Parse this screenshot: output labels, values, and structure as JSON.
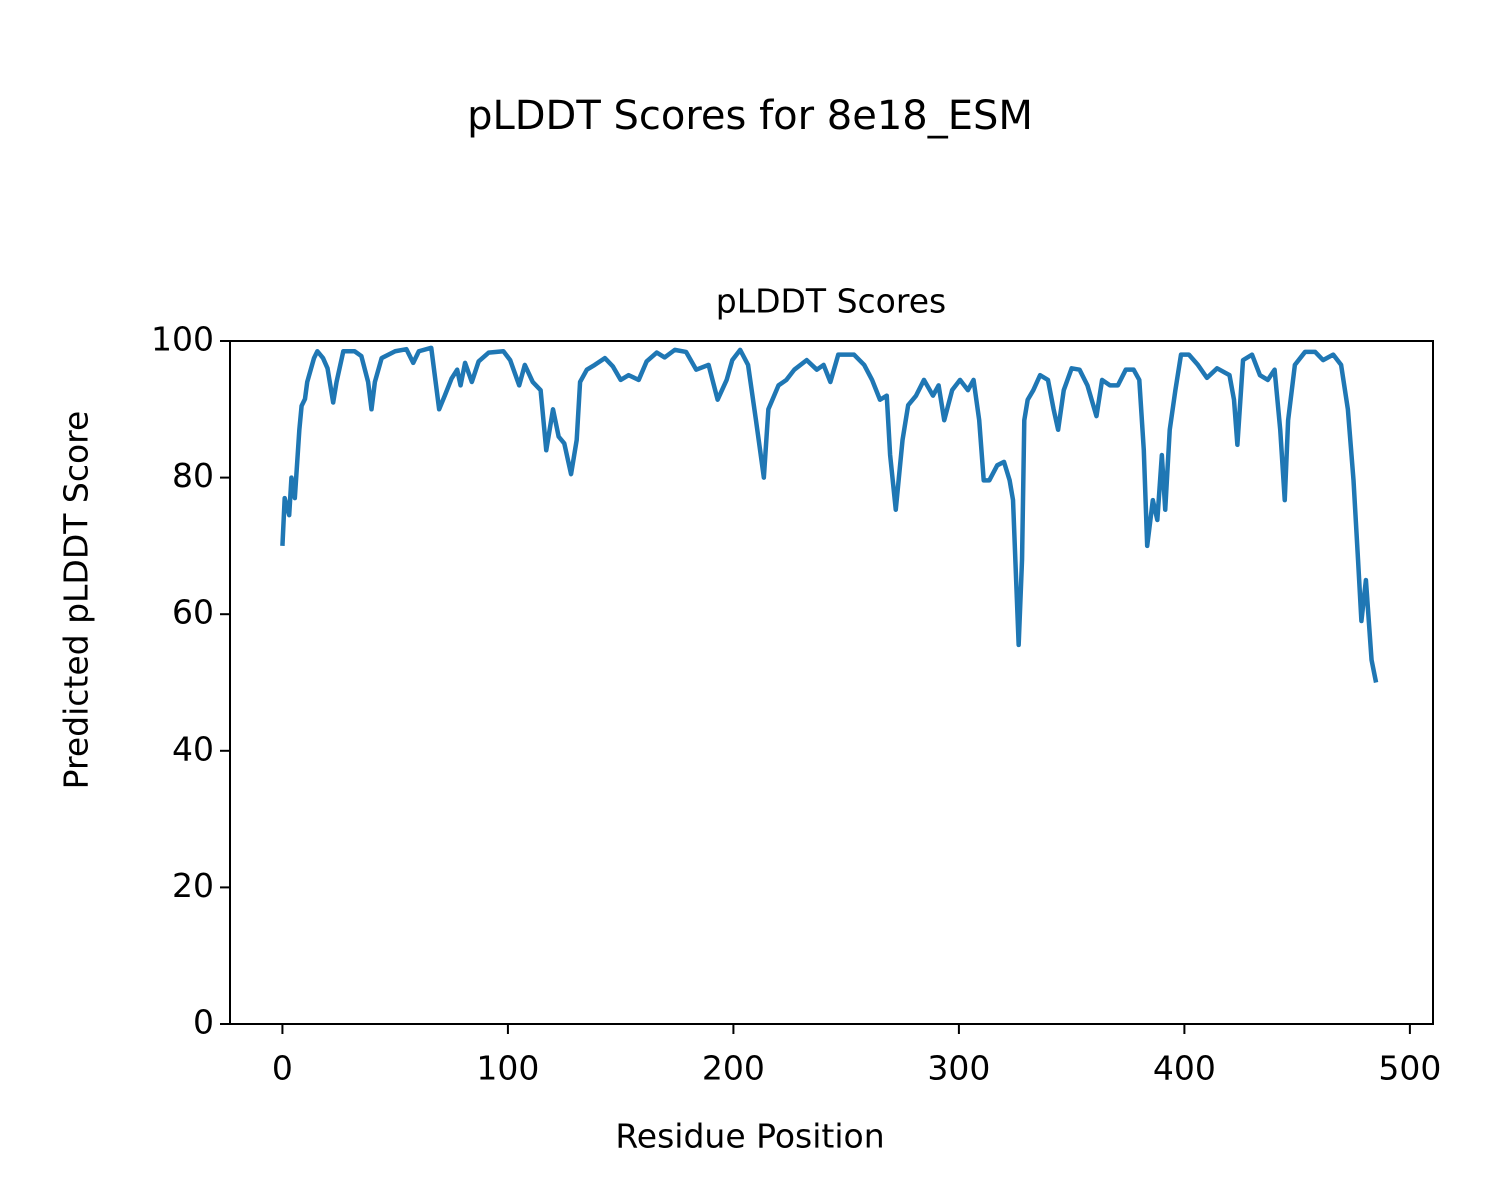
{
  "chart_data": {
    "type": "line",
    "title": "pLDDT Scores for 8e18_ESM",
    "subtitle": "pLDDT Scores",
    "x_label": "Residue Position",
    "y_label": "Predicted pLDDT Score",
    "xlim": [
      -23.25,
      510.25
    ],
    "xticks": [
      0,
      100,
      200,
      300,
      400,
      500
    ],
    "ylim": [
      0,
      100
    ],
    "yticks": [
      0,
      20,
      40,
      60,
      80,
      100
    ],
    "grid": false,
    "series": [
      {
        "name": "pLDDT",
        "color": "#1f77b4",
        "x": [
          0,
          1,
          3,
          4,
          5.5,
          7.5,
          8.5,
          10,
          11,
          14,
          15.5,
          18,
          20,
          22.5,
          24,
          27,
          32,
          35,
          38,
          39.5,
          41,
          44,
          50,
          55,
          58,
          60.5,
          66,
          69.5,
          72,
          75,
          77.5,
          79,
          81,
          84,
          87,
          91.5,
          98,
          101,
          105,
          107.5,
          111,
          114.5,
          117,
          120,
          122.5,
          125,
          128,
          130.5,
          132,
          135,
          138.5,
          143,
          146.5,
          150,
          153.5,
          158,
          161.5,
          166,
          169.5,
          174,
          179,
          183.5,
          189,
          193,
          197,
          199.5,
          203,
          206.5,
          210,
          213.5,
          215.5,
          220,
          223.5,
          227,
          232.5,
          237,
          240,
          243,
          246.5,
          253.5,
          258,
          261.5,
          265,
          268,
          269.5,
          272,
          275,
          277.5,
          281,
          284.5,
          288.5,
          291,
          293.5,
          297,
          300.5,
          304,
          306.5,
          309,
          311,
          313.5,
          317,
          320,
          322.5,
          324,
          326.5,
          328,
          329,
          330.5,
          333,
          336,
          339.5,
          342,
          344,
          346.5,
          350,
          353.5,
          357,
          361,
          363.5,
          367,
          370.5,
          374,
          377.5,
          380,
          382,
          383.5,
          386,
          388,
          390,
          391.5,
          393.5,
          396,
          398.5,
          402,
          406,
          410,
          414.5,
          420,
          422,
          423.5,
          426,
          430,
          433.5,
          437,
          440,
          442.5,
          444.5,
          446,
          449,
          453.5,
          458,
          461.5,
          466,
          469.5,
          472.5,
          475,
          477,
          478.5,
          480.5,
          483,
          485
        ],
        "values": [
          70,
          77,
          74.5,
          80,
          77,
          87,
          90.5,
          91.5,
          94,
          97.5,
          98.5,
          97.5,
          96,
          91,
          94,
          98.5,
          98.5,
          97.8,
          94,
          90,
          94,
          97.5,
          98.5,
          98.8,
          96.8,
          98.5,
          99,
          90,
          92,
          94.5,
          95.8,
          93.5,
          96.8,
          94,
          97,
          98.3,
          98.5,
          97.2,
          93.5,
          96.5,
          94,
          92.8,
          84,
          90,
          86,
          85,
          80.5,
          85.5,
          94,
          95.8,
          96.5,
          97.5,
          96.3,
          94.3,
          95,
          94.3,
          97,
          98.3,
          97.6,
          98.7,
          98.4,
          95.8,
          96.5,
          91.4,
          94.3,
          97.2,
          98.7,
          96.5,
          88.4,
          80,
          90,
          93.5,
          94.3,
          95.8,
          97.2,
          95.8,
          96.5,
          94,
          98,
          98,
          96.5,
          94.3,
          91.4,
          92,
          83.3,
          75.3,
          85.5,
          90.6,
          92,
          94.3,
          92,
          93.5,
          88.4,
          92.8,
          94.3,
          92.8,
          94.3,
          88.4,
          79.6,
          79.6,
          81.8,
          82.3,
          79.6,
          76.7,
          55.5,
          68,
          88.4,
          91.4,
          92.8,
          95,
          94.3,
          90,
          87,
          92.8,
          96,
          95.8,
          93.5,
          89,
          94.3,
          93.5,
          93.5,
          95.8,
          95.8,
          94.3,
          84,
          70,
          76.7,
          73.8,
          83.3,
          75.3,
          87,
          92.8,
          98,
          98,
          96.5,
          94.6,
          96,
          95,
          91.4,
          84.8,
          97.2,
          98,
          95,
          94.3,
          95.8,
          87,
          76.7,
          88.4,
          96.5,
          98.4,
          98.4,
          97.2,
          98,
          96.5,
          90,
          79.6,
          68,
          59,
          65,
          53.3,
          50
        ]
      }
    ]
  }
}
